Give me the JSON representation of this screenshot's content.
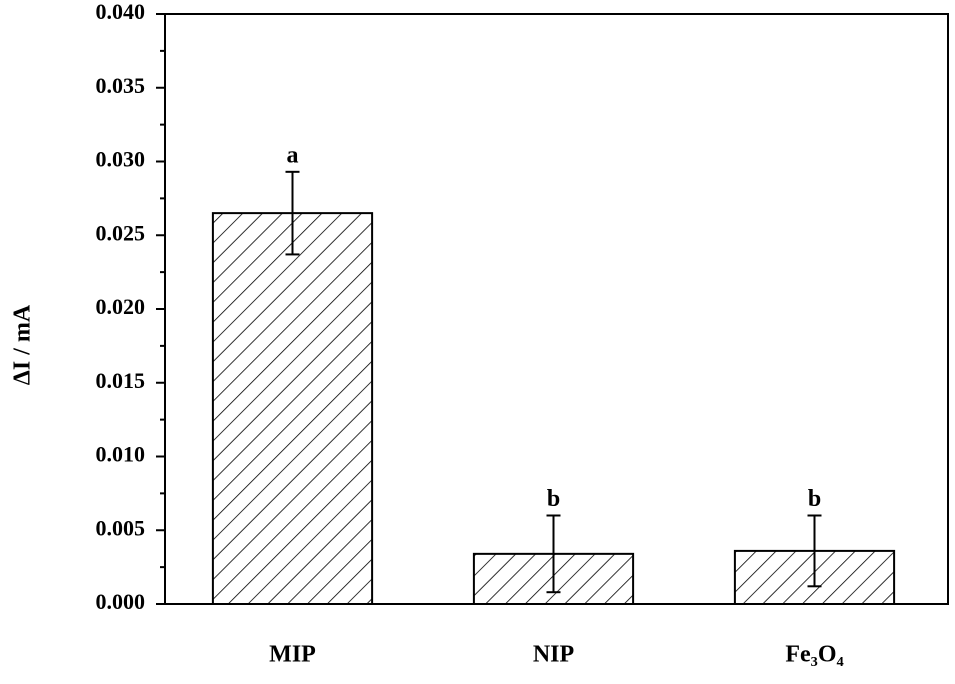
{
  "chart_data": {
    "type": "bar",
    "ylabel": "ΔI / mA",
    "categories": [
      "MIP",
      "NIP",
      "Fe₃O₄"
    ],
    "values": [
      0.0265,
      0.0034,
      0.0036
    ],
    "errors": [
      0.0028,
      0.0026,
      0.0024
    ],
    "annotations": [
      "a",
      "b",
      "b"
    ],
    "color": "#000000",
    "ylim": [
      0,
      0.04
    ],
    "yticks": [
      {
        "value": 0,
        "label": "0.000"
      },
      {
        "value": 0.005,
        "label": "0.005"
      },
      {
        "value": 0.01,
        "label": "0.010"
      },
      {
        "value": 0.015,
        "label": "0.015"
      },
      {
        "value": 0.02,
        "label": "0.020"
      },
      {
        "value": 0.025,
        "label": "0.025"
      },
      {
        "value": 0.03,
        "label": "0.030"
      },
      {
        "value": 0.035,
        "label": "0.035"
      },
      {
        "value": 0.04,
        "label": "0.040"
      }
    ],
    "yminor_ticks": [
      0.0025,
      0.0075,
      0.0125,
      0.0175,
      0.0225,
      0.0275,
      0.0325,
      0.0375
    ],
    "grid": false
  }
}
